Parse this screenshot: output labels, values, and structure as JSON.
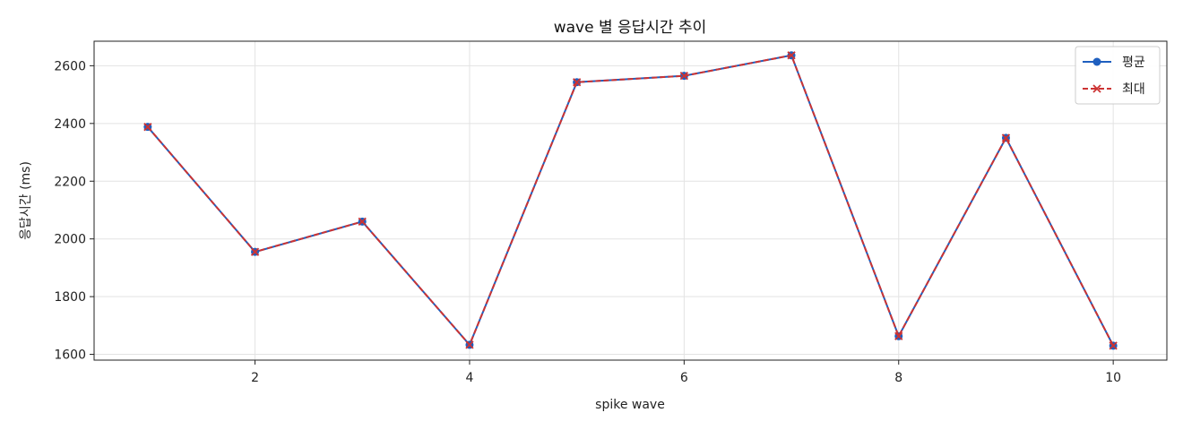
{
  "chart_data": {
    "type": "line",
    "title": "wave 별 응답시간 추이",
    "xlabel": "spike wave",
    "ylabel": "응답시간 (ms)",
    "x": [
      1,
      2,
      3,
      4,
      5,
      6,
      7,
      8,
      9,
      10
    ],
    "xlim": [
      0.5,
      10.5
    ],
    "ylim": [
      1580,
      2685
    ],
    "xticks": [
      2,
      4,
      6,
      8,
      10
    ],
    "yticks": [
      1600,
      1800,
      2000,
      2200,
      2400,
      2600
    ],
    "grid": true,
    "legend_position": "top-right",
    "series": [
      {
        "name": "평균",
        "values": [
          2388,
          1955,
          2060,
          1633,
          2543,
          2565,
          2636,
          1663,
          2350,
          1630
        ],
        "color": "#1f5fbf",
        "line_style": "solid",
        "marker": "circle"
      },
      {
        "name": "최대",
        "values": [
          2388,
          1955,
          2060,
          1633,
          2543,
          2565,
          2636,
          1663,
          2350,
          1630
        ],
        "color": "#cc3333",
        "line_style": "dashed",
        "marker": "x"
      }
    ]
  }
}
